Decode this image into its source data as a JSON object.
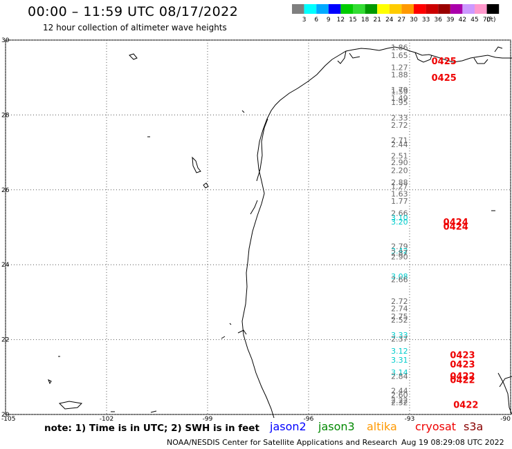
{
  "title": "00:00 – 11:59 UTC 08/17/2022",
  "subtitle": "12 hour collection of altimeter wave heights",
  "colorbar": {
    "colors": [
      "#7f7f7f",
      "#00ffff",
      "#00aaff",
      "#0000ff",
      "#00cc00",
      "#33dd33",
      "#009900",
      "#ffff00",
      "#ffcc00",
      "#ff9900",
      "#ff0000",
      "#cc0000",
      "#990000",
      "#aa00aa",
      "#cc99ff",
      "#ff99cc",
      "#000000"
    ],
    "labels": [
      "3",
      "6",
      "9",
      "12",
      "15",
      "18",
      "21",
      "24",
      "27",
      "30",
      "33",
      "36",
      "39",
      "42",
      "45",
      "70"
    ],
    "unit": "(ft)"
  },
  "axes": {
    "lon_labels": [
      "-105",
      "-102",
      "-99",
      "-96",
      "-93",
      "-90"
    ],
    "lat_labels": [
      "30",
      "28",
      "26",
      "24",
      "22",
      "20"
    ],
    "lon_range": [
      -105,
      -90
    ],
    "lat_range": [
      20,
      30
    ],
    "grid": "dotted"
  },
  "observations": [
    {
      "value": "1.86",
      "lat": 29.73,
      "series": "jason3"
    },
    {
      "value": "1.65",
      "lat": 29.52,
      "series": "jason3"
    },
    {
      "value": "1.27",
      "lat": 29.2,
      "series": "jason3"
    },
    {
      "value": "1.88",
      "lat": 29.0,
      "series": "jason3"
    },
    {
      "value": "1.79",
      "lat": 28.6,
      "series": "jason3"
    },
    {
      "value": "1.59",
      "lat": 28.55,
      "series": "jason3"
    },
    {
      "value": "1.49",
      "lat": 28.38,
      "series": "jason3"
    },
    {
      "value": "1.95",
      "lat": 28.27,
      "series": "jason3"
    },
    {
      "value": "2.33",
      "lat": 27.85,
      "series": "jason3"
    },
    {
      "value": "2.72",
      "lat": 27.66,
      "series": "jason3"
    },
    {
      "value": "2.71",
      "lat": 27.25,
      "series": "jason3"
    },
    {
      "value": "2.44",
      "lat": 27.14,
      "series": "jason3"
    },
    {
      "value": "2.51",
      "lat": 26.84,
      "series": "jason3"
    },
    {
      "value": "2.90",
      "lat": 26.66,
      "series": "jason3"
    },
    {
      "value": "2.20",
      "lat": 26.45,
      "series": "jason3"
    },
    {
      "value": "2.88",
      "lat": 26.13,
      "series": "jason3"
    },
    {
      "value": "1.27",
      "lat": 26.02,
      "series": "jason3"
    },
    {
      "value": "1.63",
      "lat": 25.82,
      "series": "jason3"
    },
    {
      "value": "1.77",
      "lat": 25.63,
      "series": "jason3"
    },
    {
      "value": "2.66",
      "lat": 25.3,
      "series": "jason3"
    },
    {
      "value": "3.10",
      "lat": 25.18,
      "series": "jason2"
    },
    {
      "value": "3.20",
      "lat": 25.07,
      "series": "jason2"
    },
    {
      "value": "2.79",
      "lat": 24.42,
      "series": "jason3"
    },
    {
      "value": "3.42",
      "lat": 24.3,
      "series": "jason2"
    },
    {
      "value": "2.87",
      "lat": 24.24,
      "series": "jason3"
    },
    {
      "value": "2.90",
      "lat": 24.14,
      "series": "jason3"
    },
    {
      "value": "3.08",
      "lat": 23.62,
      "series": "jason2"
    },
    {
      "value": "2.66",
      "lat": 23.53,
      "series": "jason3"
    },
    {
      "value": "2.72",
      "lat": 22.95,
      "series": "jason3"
    },
    {
      "value": "2.74",
      "lat": 22.76,
      "series": "jason3"
    },
    {
      "value": "2.75",
      "lat": 22.55,
      "series": "jason3"
    },
    {
      "value": "2.52",
      "lat": 22.45,
      "series": "jason3"
    },
    {
      "value": "3.33",
      "lat": 22.05,
      "series": "jason2"
    },
    {
      "value": "2.37",
      "lat": 21.95,
      "series": "jason3"
    },
    {
      "value": "3.12",
      "lat": 21.62,
      "series": "jason2"
    },
    {
      "value": "3.31",
      "lat": 21.38,
      "series": "jason2"
    },
    {
      "value": "3.14",
      "lat": 21.05,
      "series": "jason2"
    },
    {
      "value": "2.84",
      "lat": 20.95,
      "series": "jason3"
    },
    {
      "value": "2.44",
      "lat": 20.56,
      "series": "jason3"
    },
    {
      "value": "2.60",
      "lat": 20.45,
      "series": "jason3"
    },
    {
      "value": "2.22",
      "lat": 20.3,
      "series": "jason3"
    },
    {
      "value": "2.32",
      "lat": 20.25,
      "series": "jason3"
    }
  ],
  "time_labels": [
    {
      "text": "0425",
      "lat": 29.45,
      "lon": -92.35
    },
    {
      "text": "0425",
      "lat": 29.0,
      "lon": -92.35
    },
    {
      "text": "0424",
      "lat": 25.15,
      "lon": -92.0
    },
    {
      "text": "0424",
      "lat": 25.03,
      "lon": -92.0
    },
    {
      "text": "0423",
      "lat": 21.6,
      "lon": -91.8
    },
    {
      "text": "0423",
      "lat": 21.35,
      "lon": -91.8
    },
    {
      "text": "0422",
      "lat": 21.03,
      "lon": -91.8
    },
    {
      "text": "0422",
      "lat": 20.93,
      "lon": -91.8
    },
    {
      "text": "0422",
      "lat": 20.27,
      "lon": -91.7
    }
  ],
  "series_colors": {
    "jason2": "#00cccc",
    "jason3": "#666666",
    "label": "#ee0000"
  },
  "note": "note: 1) Time is in UTC; 2) SWH is in feet",
  "legend": [
    {
      "name": "jason2",
      "color": "#0000ff"
    },
    {
      "name": "jason3",
      "color": "#008800"
    },
    {
      "name": "altika",
      "color": "#ff9900"
    },
    {
      "name": "cryosat",
      "color": "#ee0000"
    },
    {
      "name": "s3a",
      "color": "#880000"
    }
  ],
  "footer": {
    "credit": "NOAA/NESDIS Center for Satellite Applications and Research",
    "generated": "Aug 19 08:29:08 UTC 2022"
  }
}
